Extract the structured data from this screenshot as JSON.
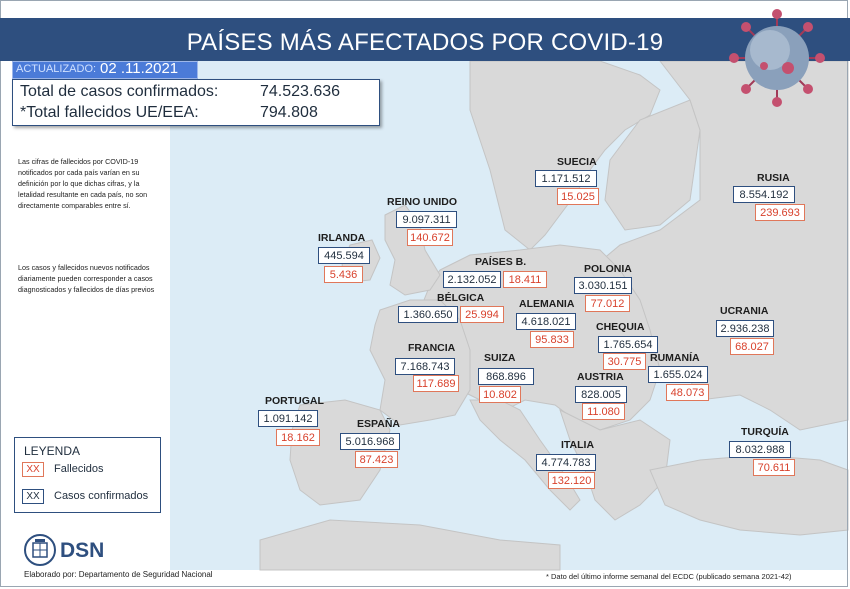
{
  "header": {
    "title": "PAÍSES MÁS AFECTADOS POR COVID-19"
  },
  "updated": {
    "label": "ACTUALIZADO:",
    "date": "02 .11.2021"
  },
  "totals": {
    "cases_label": "Total de casos confirmados:",
    "cases_value": "74.523.636",
    "deaths_label": "*Total fallecidos UE/EEA:",
    "deaths_value": "794.808"
  },
  "notes": [
    "Las cifras de fallecidos por COVID-19 notificados por cada país varían en su definición por lo que dichas cifras, y la letalidad resultante en cada país, no son directamente comparables entre sí.",
    "Los casos y fallecidos nuevos notificados diariamente pueden corresponder a casos diagnosticados y fallecidos de días previos"
  ],
  "countries": [
    {
      "name": "SUECIA",
      "confirmed": "1.171.512",
      "deaths": "15.025"
    },
    {
      "name": "RUSIA",
      "confirmed": "8.554.192",
      "deaths": "239.693"
    },
    {
      "name": "REINO UNIDO",
      "confirmed": "9.097.311",
      "deaths": "140.672"
    },
    {
      "name": "IRLANDA",
      "confirmed": "445.594",
      "deaths": "5.436"
    },
    {
      "name": "PAÍSES B.",
      "confirmed": "2.132.052",
      "deaths": "18.411"
    },
    {
      "name": "POLONIA",
      "confirmed": "3.030.151",
      "deaths": "77.012"
    },
    {
      "name": "BÉLGICA",
      "confirmed": "1.360.650",
      "deaths": "25.994"
    },
    {
      "name": "ALEMANIA",
      "confirmed": "4.618.021",
      "deaths": "95.833"
    },
    {
      "name": "UCRANIA",
      "confirmed": "2.936.238",
      "deaths": "68.027"
    },
    {
      "name": "CHEQUIA",
      "confirmed": "1.765.654",
      "deaths": "30.775"
    },
    {
      "name": "FRANCIA",
      "confirmed": "7.168.743",
      "deaths": "117.689"
    },
    {
      "name": "SUIZA",
      "confirmed": "868.896",
      "deaths": "10.802"
    },
    {
      "name": "RUMANÍA",
      "confirmed": "1.655.024",
      "deaths": "48.073"
    },
    {
      "name": "AUSTRIA",
      "confirmed": "828.005",
      "deaths": "11.080"
    },
    {
      "name": "PORTUGAL",
      "confirmed": "1.091.142",
      "deaths": "18.162"
    },
    {
      "name": "ESPAÑA",
      "confirmed": "5.016.968",
      "deaths": "87.423"
    },
    {
      "name": "ITALIA",
      "confirmed": "4.774.783",
      "deaths": "132.120"
    },
    {
      "name": "TURQUÍA",
      "confirmed": "8.032.988",
      "deaths": "70.611"
    }
  ],
  "legend": {
    "title": "LEYENDA",
    "sample": "XX",
    "deaths_label": "Fallecidos",
    "confirmed_label": "Casos confirmados"
  },
  "logo": {
    "text": "DSN"
  },
  "credit": "Elaborado por: Departamento de Seguridad Nacional",
  "footnote": "* Dato del último informe semanal del ECDC (publicado semana 2021-42)",
  "colors": {
    "header": "#2e4f7f",
    "sea": "#dcecf6",
    "land": "#d9d9d9",
    "deaths": "#d8412c",
    "confirmed_border": "#2e4f7f",
    "updated_bg": "#4b7bd8"
  }
}
